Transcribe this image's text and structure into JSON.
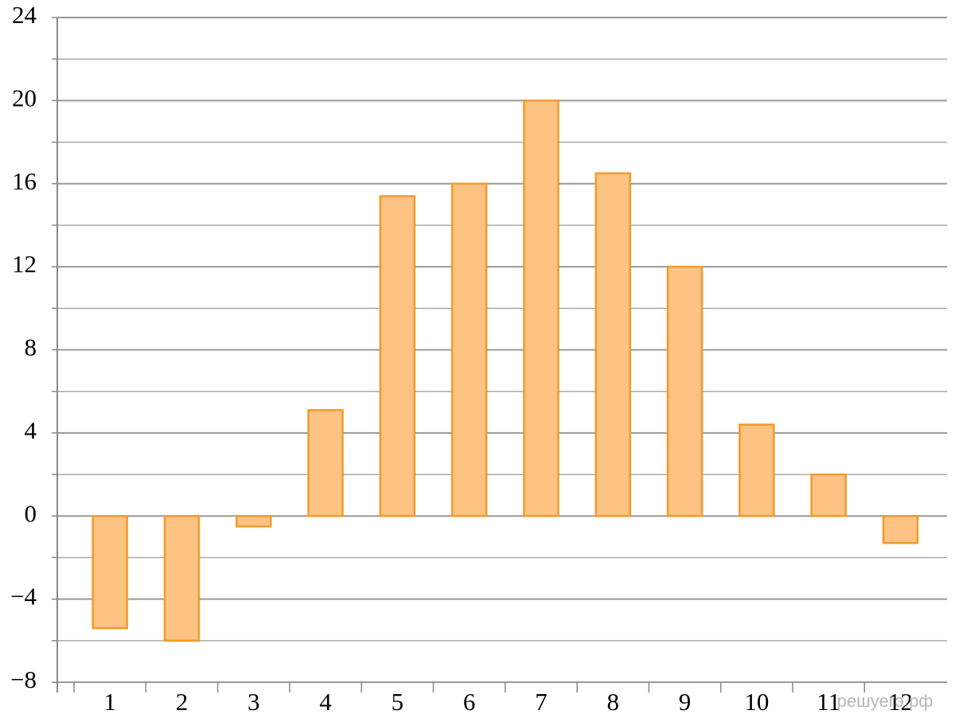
{
  "chart_data": {
    "type": "bar",
    "categories": [
      "1",
      "2",
      "3",
      "4",
      "5",
      "6",
      "7",
      "8",
      "9",
      "10",
      "11",
      "12"
    ],
    "values": [
      -5.4,
      -6,
      -0.5,
      5.1,
      15.4,
      16,
      20,
      16.5,
      12,
      4.4,
      2,
      -1.3
    ],
    "color": "#fdc382",
    "edge_color": "#f39a2a",
    "ylim": [
      -8,
      24
    ],
    "yticks": [
      {
        "value": -8,
        "label": "−8"
      },
      {
        "value": -4,
        "label": "−4"
      },
      0,
      4,
      8,
      12,
      16,
      20,
      24
    ],
    "minor_yticks": [
      -6,
      -2,
      2,
      6,
      10,
      14,
      18,
      22
    ],
    "grid": true,
    "annotation": "решуегэ.рф"
  }
}
